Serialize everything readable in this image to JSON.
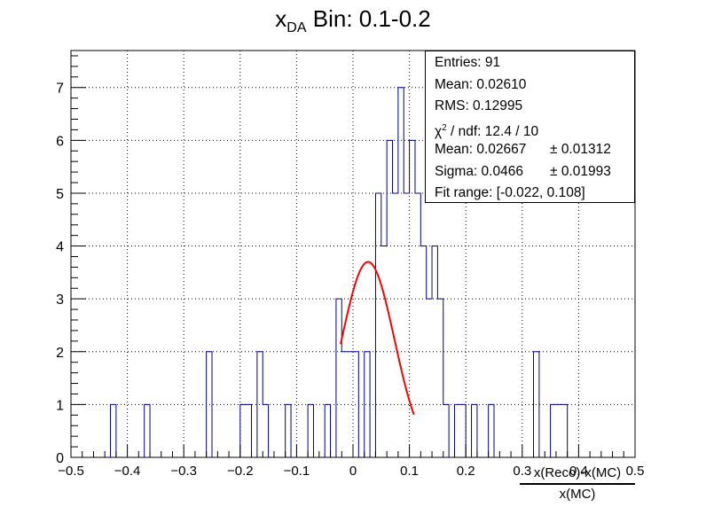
{
  "chart_data": {
    "type": "bar",
    "style": "step-histogram",
    "title_main": "x",
    "title_sub": "DA",
    "title_rest": " Bin: 0.1-0.2",
    "xlabel_num": "x(Reco)-x(MC)",
    "xlabel_den": "x(MC)",
    "xlim": [
      -0.5,
      0.5
    ],
    "ylim": [
      0,
      7.7
    ],
    "bins": 100,
    "xticks": [
      "−0.5",
      "−0.4",
      "−0.3",
      "−0.2",
      "−0.1",
      "0",
      "0.1",
      "0.2",
      "0.3",
      "0.4",
      "0.5"
    ],
    "yticks": [
      "0",
      "1",
      "2",
      "3",
      "4",
      "5",
      "6",
      "7"
    ],
    "grid": true,
    "counts": [
      0,
      0,
      0,
      0,
      0,
      0,
      0,
      1,
      0,
      0,
      0,
      0,
      0,
      1,
      0,
      0,
      0,
      0,
      0,
      0,
      0,
      0,
      0,
      0,
      2,
      0,
      0,
      0,
      0,
      0,
      1,
      1,
      0,
      2,
      1,
      0,
      0,
      0,
      1,
      0,
      0,
      0,
      1,
      0,
      0,
      1,
      0,
      3,
      2,
      2,
      2,
      0,
      2,
      0,
      5,
      4,
      6,
      5,
      7,
      5,
      6,
      5,
      4,
      3,
      4,
      3,
      1,
      0,
      1,
      1,
      0,
      1,
      0,
      0,
      1,
      0,
      0,
      0,
      0,
      0,
      0,
      0,
      2,
      0,
      0,
      1,
      1,
      1,
      0,
      0,
      0,
      0,
      0,
      0,
      0,
      0,
      0,
      0,
      0,
      0
    ],
    "fit": {
      "type": "gaussian",
      "constant": 3.7,
      "mean": 0.02667,
      "sigma": 0.0466,
      "range": [
        -0.022,
        0.108
      ],
      "color": "#ff0000"
    },
    "line_color": "#000099",
    "stats": {
      "entries": "Entries: 91",
      "mean": "Mean: 0.02610",
      "rms": "RMS: 0.12995",
      "chi2": "χ",
      "chi2_rest": " / ndf: 12.4 / 10",
      "fit_mean": "Mean: 0.02667",
      "fit_mean_err": "± 0.01312",
      "sigma": "Sigma: 0.0466",
      "sigma_err": "± 0.01993",
      "fit_range": "Fit range: [-0.022, 0.108]"
    }
  }
}
